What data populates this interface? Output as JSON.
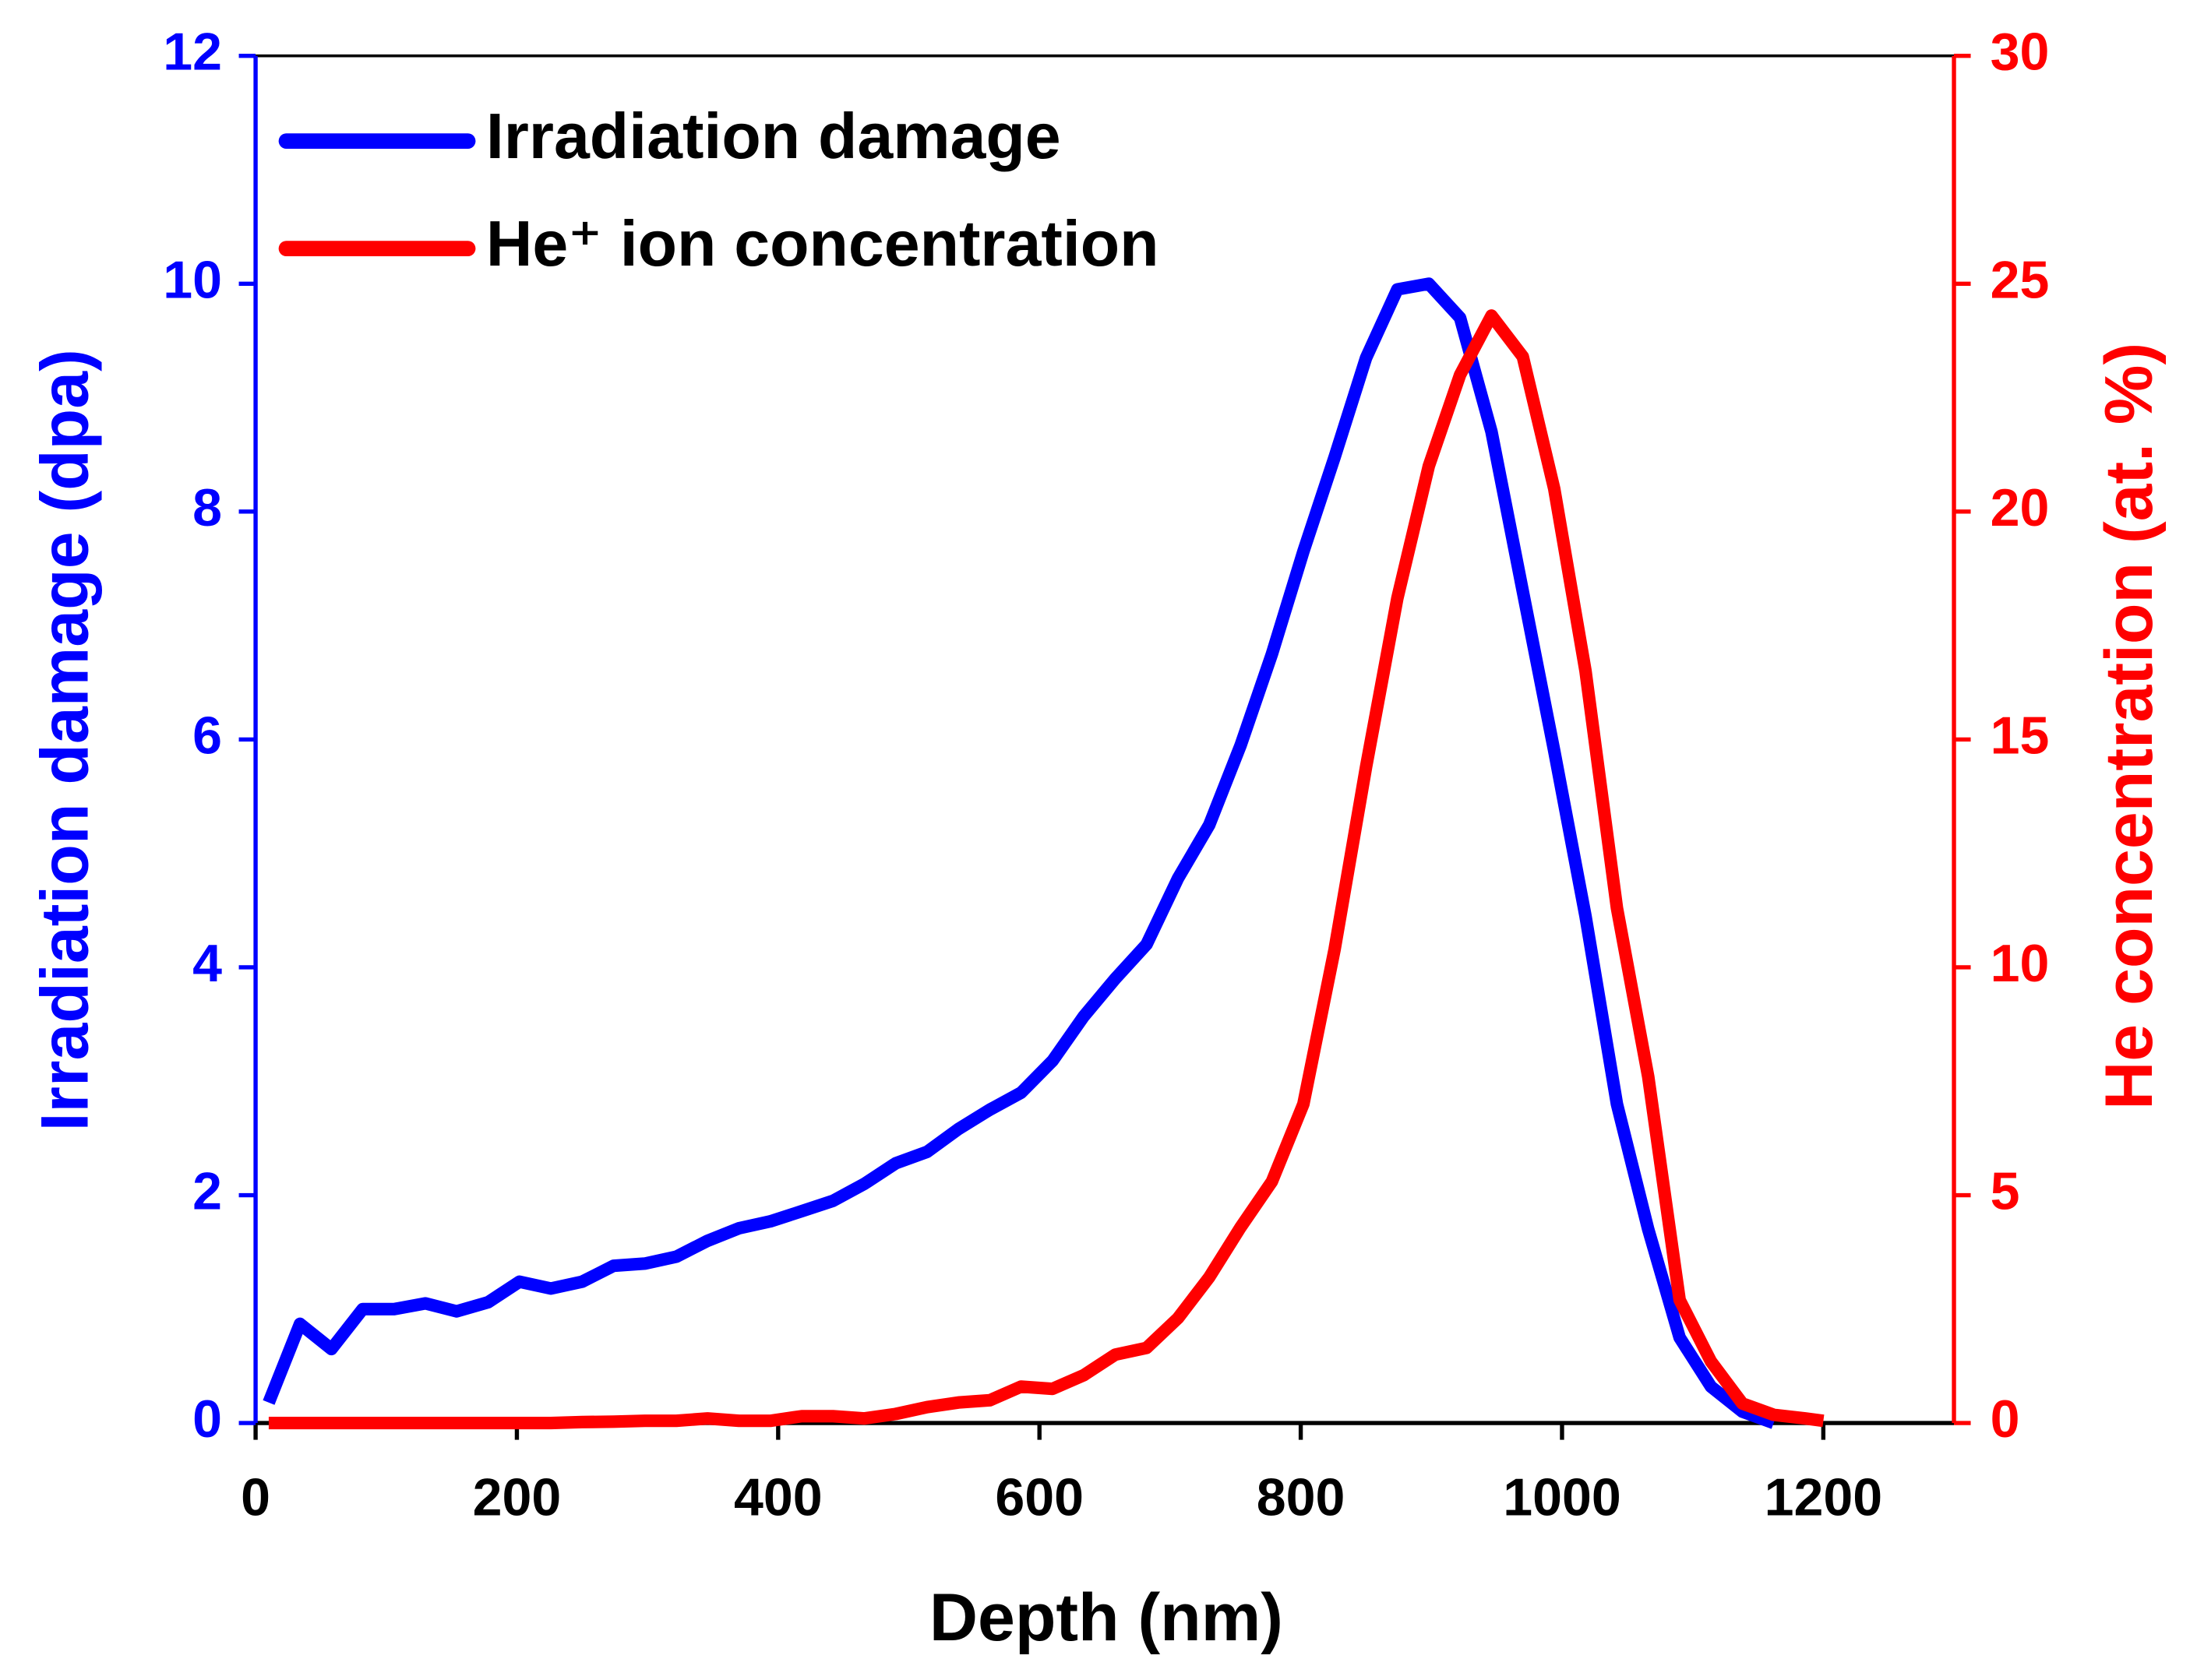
{
  "chart_data": {
    "type": "line",
    "x_label": "Depth (nm)",
    "y_label": "Irradiation damage (dpa)",
    "y2_label": "He concentration (at. %)",
    "xlim": [
      0,
      1300
    ],
    "xticks": [
      0,
      200,
      400,
      600,
      800,
      1000,
      1200
    ],
    "ylim": [
      0,
      12
    ],
    "yticks": [
      0,
      2,
      4,
      6,
      8,
      10,
      12
    ],
    "y2lim": [
      0,
      30
    ],
    "y2ticks": [
      0,
      5,
      10,
      15,
      20,
      25,
      30
    ],
    "legend": "upper left",
    "x": [
      10,
      34,
      58,
      82,
      106,
      130,
      154,
      178,
      202,
      226,
      250,
      274,
      298,
      322,
      346,
      370,
      394,
      418,
      442,
      466,
      490,
      514,
      538,
      562,
      586,
      610,
      634,
      658,
      682,
      706,
      730,
      754,
      778,
      802,
      826,
      850,
      874,
      898,
      922,
      946,
      970,
      994,
      1018,
      1042,
      1066,
      1090,
      1114,
      1138,
      1162,
      1186,
      1200
    ],
    "series": [
      {
        "name": "Irradiation damage",
        "color": "#0000ff",
        "axis": "y",
        "values": [
          0.18,
          0.87,
          0.65,
          1.0,
          1.0,
          1.05,
          0.98,
          1.06,
          1.24,
          1.18,
          1.24,
          1.38,
          1.4,
          1.46,
          1.6,
          1.71,
          1.77,
          1.86,
          1.95,
          2.1,
          2.28,
          2.38,
          2.58,
          2.75,
          2.9,
          3.18,
          3.57,
          3.9,
          4.2,
          4.78,
          5.25,
          5.95,
          6.75,
          7.65,
          8.48,
          9.35,
          9.95,
          10.0,
          9.7,
          8.7,
          7.3,
          5.9,
          4.45,
          2.8,
          1.7,
          0.75,
          0.32,
          0.1,
          0,
          null,
          null
        ]
      },
      {
        "name": "He⁺ ion concentration",
        "color": "#ff0000",
        "axis": "y2",
        "values": [
          0,
          0,
          0,
          0,
          0,
          0,
          0,
          0,
          0,
          0,
          0.02,
          0.03,
          0.05,
          0.05,
          0.1,
          0.05,
          0.05,
          0.15,
          0.15,
          0.1,
          0.2,
          0.35,
          0.45,
          0.5,
          0.8,
          0.75,
          1.05,
          1.5,
          1.65,
          2.3,
          3.2,
          4.3,
          5.3,
          7.0,
          10.4,
          14.4,
          18.1,
          21.0,
          23.0,
          24.3,
          23.4,
          20.5,
          16.5,
          11.3,
          7.6,
          2.7,
          1.35,
          0.43,
          0.18,
          0.1,
          0.05
        ]
      }
    ]
  }
}
